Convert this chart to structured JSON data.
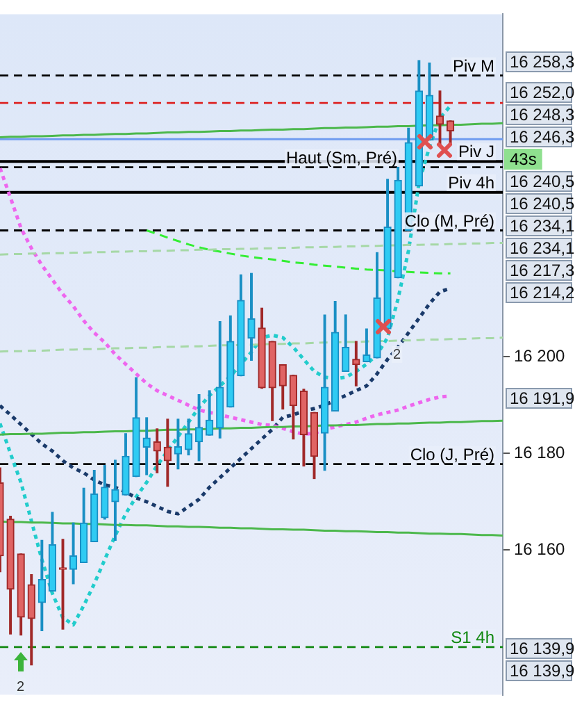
{
  "chart_data": {
    "type": "candlestick",
    "categories": [
      null,
      null,
      null,
      null,
      null,
      null,
      null,
      null,
      null,
      null,
      null,
      null,
      null,
      null,
      null,
      null,
      null,
      null,
      null,
      null,
      null,
      null,
      null,
      null,
      null,
      null,
      null,
      null,
      null,
      null,
      null,
      null,
      null,
      null,
      null,
      null,
      null,
      null,
      null,
      null,
      null,
      null,
      null,
      null,
      null,
      null,
      null,
      null,
      null
    ],
    "ohlc": [
      [
        16173.9,
        16177.0,
        16155.5,
        16158.8
      ],
      [
        16166.4,
        16167.0,
        16142.6,
        16151.9
      ],
      [
        16159.2,
        16159.2,
        16142.4,
        16146.1
      ],
      [
        16152.8,
        16154.9,
        16136.2,
        16145.8
      ],
      [
        16149.1,
        16162.0,
        16143.3,
        16153.9
      ],
      [
        16151.5,
        16167.8,
        16151.5,
        16161.1
      ],
      [
        16156.3,
        16162.2,
        16143.6,
        16156.0
      ],
      [
        16156.0,
        16165.6,
        16153.0,
        16158.8
      ],
      [
        16157.4,
        16172.8,
        16157.4,
        16165.6
      ],
      [
        16161.7,
        16176.5,
        16161.7,
        16171.6
      ],
      [
        16166.7,
        16177.5,
        16166.4,
        16173.0
      ],
      [
        16170.0,
        16178.6,
        16162.0,
        16172.5
      ],
      [
        16171.4,
        16184.1,
        16171.4,
        16179.4
      ],
      [
        16175.2,
        16195.7,
        16175.2,
        16187.4
      ],
      [
        16181.3,
        16187.4,
        16175.6,
        16183.2
      ],
      [
        16182.4,
        16185.1,
        16176.0,
        16180.5
      ],
      [
        16181.3,
        16187.1,
        16173.2,
        16178.5
      ],
      [
        16179.9,
        16187.1,
        16176.8,
        16181.4
      ],
      [
        16180.8,
        16187.1,
        16179.7,
        16184.1
      ],
      [
        16182.4,
        16192.2,
        16178.5,
        16185.4
      ],
      [
        16183.8,
        16193.0,
        16183.8,
        16186.9
      ],
      [
        16185.3,
        16207.3,
        16183.2,
        16193.7
      ],
      [
        16189.6,
        16208.5,
        16189.6,
        16203.2
      ],
      [
        16196.1,
        16217.0,
        16196.1,
        16211.7
      ],
      [
        16203.9,
        16217.3,
        16199.3,
        16207.9
      ],
      [
        16206.0,
        16210.1,
        16193.5,
        16193.6
      ],
      [
        16203.2,
        16203.2,
        16186.8,
        16193.6
      ],
      [
        16198.4,
        16198.4,
        16189.2,
        16194.0
      ],
      [
        16196.2,
        16196.2,
        16183.0,
        16189.9
      ],
      [
        16192.9,
        16193.3,
        16177.4,
        16183.9
      ],
      [
        16188.5,
        16188.5,
        16174.8,
        16179.4
      ],
      [
        16184.2,
        16208.7,
        16176.5,
        16193.7
      ],
      [
        16188.8,
        16211.5,
        16188.8,
        16205.1
      ],
      [
        16197.0,
        16208.7,
        16197.0,
        16202.0
      ],
      [
        16199.5,
        16203.2,
        16194.0,
        16198.4
      ],
      [
        16199.0,
        16205.8,
        16199.0,
        16200.4
      ],
      [
        16199.8,
        16221.6,
        16199.8,
        16212.2
      ],
      [
        16205.8,
        16236.8,
        16205.8,
        16226.9
      ],
      [
        16216.4,
        16239.3,
        16216.4,
        16236.6
      ],
      [
        16226.2,
        16247.4,
        16226.2,
        16244.4
      ],
      [
        16235.4,
        16261.4,
        16235.4,
        16255.1
      ],
      [
        16244.9,
        16260.9,
        16244.9,
        16254.2
      ],
      [
        16249.9,
        16255.1,
        16244.0,
        16248.2
      ],
      [
        16248.9,
        16248.9,
        16244.0,
        16246.8
      ],
      null,
      null,
      null,
      null,
      null
    ],
    "series": [
      {
        "type": "line",
        "color": "#a6d8a6",
        "line_style": "dashed",
        "values": [
          16221.2,
          16221.3,
          16221.3,
          16221.4,
          16221.4,
          16221.5,
          16221.5,
          16221.6,
          16221.6,
          16221.7,
          16221.7,
          16221.8,
          16221.8,
          16221.9,
          16221.9,
          16222.0,
          16222.0,
          16222.1,
          16222.1,
          16222.2,
          16222.2,
          16222.3,
          16222.3,
          16222.4,
          16222.4,
          16222.5,
          16222.5,
          16222.6,
          16222.6,
          16222.7,
          16222.7,
          16222.8,
          16222.8,
          16222.9,
          16222.9,
          16223.0,
          16223.0,
          16223.1,
          16223.1,
          16223.2,
          16223.2,
          16223.3,
          16223.3,
          16223.4,
          16223.4,
          16223.5,
          16223.5,
          16223.6,
          16223.6
        ]
      },
      {
        "type": "line",
        "color": "#a6d8a6",
        "line_style": "dashed",
        "values": [
          16201.1,
          16201.2,
          16201.2,
          16201.3,
          16201.3,
          16201.4,
          16201.5,
          16201.5,
          16201.6,
          16201.6,
          16201.7,
          16201.8,
          16201.8,
          16201.9,
          16201.9,
          16202.0,
          16202.1,
          16202.1,
          16202.2,
          16202.2,
          16202.3,
          16202.4,
          16202.4,
          16202.5,
          16202.5,
          16202.6,
          16202.7,
          16202.7,
          16202.8,
          16202.8,
          16202.9,
          16203.0,
          16203.0,
          16203.1,
          16203.1,
          16203.2,
          16203.3,
          16203.3,
          16203.4,
          16203.4,
          16203.5,
          16203.6,
          16203.6,
          16203.7,
          16203.7,
          16203.8,
          16203.9,
          16203.9,
          16204.0
        ]
      },
      {
        "type": "line",
        "color": "#4cb84c",
        "line_style": "solid",
        "values": [
          16245.5,
          16245.6,
          16245.6,
          16245.7,
          16245.7,
          16245.8,
          16245.9,
          16245.9,
          16246.0,
          16246.0,
          16246.1,
          16246.2,
          16246.2,
          16246.3,
          16246.3,
          16246.4,
          16246.5,
          16246.5,
          16246.6,
          16246.6,
          16246.7,
          16246.8,
          16246.8,
          16246.9,
          16246.9,
          16247.0,
          16247.1,
          16247.1,
          16247.2,
          16247.2,
          16247.3,
          16247.4,
          16247.4,
          16247.5,
          16247.5,
          16247.6,
          16247.7,
          16247.7,
          16247.8,
          16247.8,
          16247.9,
          16248.0,
          16248.0,
          16248.1,
          16248.1,
          16248.2,
          16248.3,
          16248.3,
          16248.4
        ]
      },
      {
        "type": "line",
        "color": "#4cb84c",
        "line_style": "solid",
        "values": [
          16183.9,
          16184.0,
          16184.0,
          16184.1,
          16184.1,
          16184.2,
          16184.3,
          16184.3,
          16184.4,
          16184.4,
          16184.5,
          16184.6,
          16184.6,
          16184.7,
          16184.7,
          16184.8,
          16184.9,
          16184.9,
          16185.0,
          16185.0,
          16185.1,
          16185.2,
          16185.2,
          16185.3,
          16185.3,
          16185.4,
          16185.5,
          16185.5,
          16185.6,
          16185.6,
          16185.7,
          16185.8,
          16185.8,
          16185.9,
          16185.9,
          16186.0,
          16186.1,
          16186.1,
          16186.2,
          16186.2,
          16186.3,
          16186.4,
          16186.4,
          16186.5,
          16186.5,
          16186.6,
          16186.7,
          16186.7,
          16186.8
        ]
      },
      {
        "type": "line",
        "color": "#4cb84c",
        "line_style": "solid",
        "values": [
          16165.9,
          16165.8,
          16165.8,
          16165.7,
          16165.7,
          16165.6,
          16165.5,
          16165.5,
          16165.4,
          16165.4,
          16165.3,
          16165.2,
          16165.2,
          16165.1,
          16165.1,
          16165.0,
          16164.9,
          16164.9,
          16164.8,
          16164.8,
          16164.7,
          16164.6,
          16164.6,
          16164.5,
          16164.5,
          16164.4,
          16164.3,
          16164.3,
          16164.2,
          16164.2,
          16164.1,
          16164.0,
          16164.0,
          16163.9,
          16163.9,
          16163.8,
          16163.7,
          16163.7,
          16163.6,
          16163.6,
          16163.5,
          16163.4,
          16163.4,
          16163.3,
          16163.3,
          16163.2,
          16163.1,
          16163.1,
          16163.0
        ]
      },
      {
        "type": "line",
        "color": "#33ee33",
        "line_style": "dashed",
        "values": [
          null,
          null,
          null,
          null,
          null,
          null,
          null,
          null,
          null,
          null,
          null,
          null,
          null,
          null,
          16226.2,
          16225.5,
          16224.7,
          16224.0,
          16223.3,
          16222.7,
          16222.2,
          16221.8,
          16221.4,
          16221.0,
          16220.7,
          16220.4,
          16220.2,
          16219.9,
          16219.6,
          16219.4,
          16219.1,
          16218.9,
          16218.7,
          16218.5,
          16218.3,
          16218.1,
          16218.0,
          16217.9,
          16217.7,
          16217.6,
          16217.5,
          16217.4,
          16217.3,
          16217.3,
          null,
          null,
          null,
          null,
          null
        ]
      },
      {
        "type": "line",
        "color": "#ee66ee",
        "line_style": "dotted",
        "values": [
          16239.1,
          16233.0,
          16226.7,
          16222.5,
          16219.0,
          16216.0,
          16213.0,
          16210.5,
          16207.5,
          16205.0,
          16203.0,
          16200.5,
          16198.5,
          16196.5,
          16194.5,
          16193.0,
          16192.0,
          16191.0,
          16190.0,
          16189.0,
          16188.5,
          16188.0,
          16187.5,
          16187.0,
          16186.5,
          16186.0,
          16185.8,
          16185.2,
          16184.5,
          16184.0,
          16184.2,
          16185.0,
          16185.5,
          16186.0,
          16186.5,
          16187.3,
          16188.0,
          16188.5,
          16189.0,
          16189.8,
          16190.5,
          16191.2,
          16191.7,
          16191.9,
          null,
          null,
          null,
          null,
          null
        ]
      },
      {
        "type": "line",
        "color": "#1a3a6a",
        "line_style": "dotted",
        "values": [
          16189.9,
          16188.0,
          16186.0,
          16184.0,
          16182.0,
          16180.5,
          16178.5,
          16177.0,
          16176.0,
          16174.5,
          16173.5,
          16173.0,
          16172.0,
          16170.8,
          16170.0,
          16169.0,
          16168.0,
          16167.5,
          16169.0,
          16170.5,
          16173.0,
          16175.0,
          16177.0,
          16179.0,
          16181.0,
          16183.0,
          16185.0,
          16187.5,
          16188.0,
          16188.8,
          16189.3,
          16190.0,
          16191.0,
          16192.0,
          16193.0,
          16194.0,
          16196.5,
          16199.5,
          16202.0,
          16205.0,
          16208.0,
          16211.0,
          16213.5,
          16214.2,
          null,
          null,
          null,
          null,
          null
        ]
      },
      {
        "type": "line",
        "color": "#22cccc",
        "line_style": "dotted",
        "values": [
          16186.2,
          16180.0,
          16174.0,
          16166.0,
          16158.0,
          16151.0,
          16146.0,
          16144.5,
          16148.5,
          16153.0,
          16158.0,
          16163.0,
          16167.5,
          16171.0,
          16174.0,
          16177.5,
          16180.5,
          16183.5,
          16186.5,
          16189.5,
          16192.0,
          16194.0,
          16196.0,
          16198.5,
          16201.0,
          16204.0,
          16204.5,
          16204.0,
          16202.0,
          16199.5,
          16197.0,
          16195.8,
          16195.5,
          16195.8,
          16197.0,
          16198.5,
          16200.5,
          16204.0,
          16212.0,
          16222.0,
          16236.0,
          16243.5,
          16249.5,
          16252.0,
          null,
          null,
          null,
          null,
          null
        ]
      }
    ],
    "ylim": [
      16130,
      16271
    ],
    "yticks": [
      {
        "value": 16160,
        "label": "16 160"
      },
      {
        "value": 16180,
        "label": "16 180"
      },
      {
        "value": 16200,
        "label": "16 200"
      }
    ],
    "tick_labels": "y",
    "grid": false,
    "legend": false,
    "ref_lines": [
      {
        "axis": "y",
        "value": 16258.3,
        "label": "Piv M",
        "color": "#000000",
        "line_style": "dashed"
      },
      {
        "axis": "y",
        "value": 16252.6,
        "color": "#dd2222",
        "line_style": "dashed"
      },
      {
        "axis": "y",
        "value": 16245.1,
        "color": "#6f9cf0",
        "line_style": "solid"
      },
      {
        "axis": "y",
        "value": 16240.5,
        "label": "Piv J",
        "color": "#000000",
        "line_style": "solid"
      },
      {
        "axis": "y",
        "value": 16239.3,
        "label": "Haut (Sm, Pré)",
        "color": "#000000",
        "line_style": "dashed"
      },
      {
        "axis": "y",
        "value": 16234.1,
        "label": "Piv 4h",
        "color": "#000000",
        "line_style": "solid"
      },
      {
        "axis": "y",
        "value": 16226.2,
        "label": "Clo (M, Pré)",
        "color": "#000000",
        "line_style": "dashed"
      },
      {
        "axis": "y",
        "value": 16177.8,
        "label": "Clo (J, Pré)",
        "color": "#000000",
        "line_style": "dashed"
      },
      {
        "axis": "y",
        "value": 16139.9,
        "label": "S1 4h",
        "color": "#118811",
        "line_style": "dashed"
      }
    ],
    "annotations": [
      "16 258,3",
      "16 252,0",
      "16 248,3",
      "16 246,3",
      "43s",
      "16 240,5",
      "16 240,5",
      "16 234,1",
      "16 234,1",
      "16 217,3",
      "16 214,2",
      "16 191,9",
      "16 139,9",
      "16 139,9",
      "2",
      "2"
    ]
  }
}
